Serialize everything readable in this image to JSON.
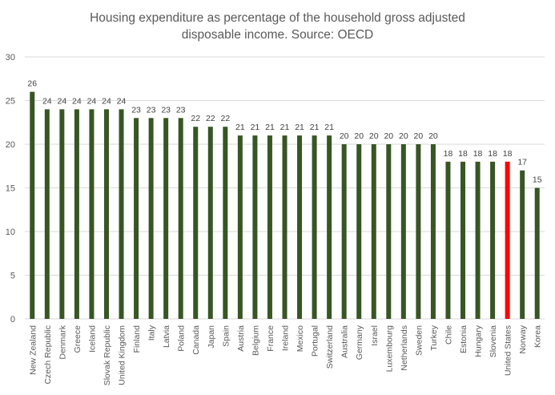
{
  "chart_data": {
    "type": "bar",
    "title": "Housing expenditure as percentage of the household gross adjusted disposable income. Source: OECD",
    "title_lines": [
      "Housing expenditure as percentage of the household gross adjusted",
      "disposable income. Source: OECD"
    ],
    "xlabel": "",
    "ylabel": "",
    "ylim": [
      0,
      30
    ],
    "yticks": [
      0,
      5,
      10,
      15,
      20,
      25,
      30
    ],
    "grid": true,
    "legend": "none",
    "categories": [
      "New Zealand",
      "Czech Republic",
      "Denmark",
      "Greece",
      "Iceland",
      "Slovak Republic",
      "United Kingdom",
      "Finland",
      "Italy",
      "Latvia",
      "Poland",
      "Canada",
      "Japan",
      "Spain",
      "Austria",
      "Belgium",
      "France",
      "Ireland",
      "Mexico",
      "Portugal",
      "Switzerland",
      "Australia",
      "Germany",
      "Israel",
      "Luxembourg",
      "Netherlands",
      "Sweden",
      "Turkey",
      "Chile",
      "Estonia",
      "Hungary",
      "Slovenia",
      "United States",
      "Norway",
      "Korea"
    ],
    "values": [
      26,
      24,
      24,
      24,
      24,
      24,
      24,
      23,
      23,
      23,
      23,
      22,
      22,
      22,
      21,
      21,
      21,
      21,
      21,
      21,
      21,
      20,
      20,
      20,
      20,
      20,
      20,
      20,
      18,
      18,
      18,
      18,
      18,
      17,
      15
    ],
    "highlight": {
      "category": "United States"
    },
    "colors": {
      "bar": "#375623",
      "highlight": "#FF0000",
      "grid": "#D9D9D9"
    }
  }
}
